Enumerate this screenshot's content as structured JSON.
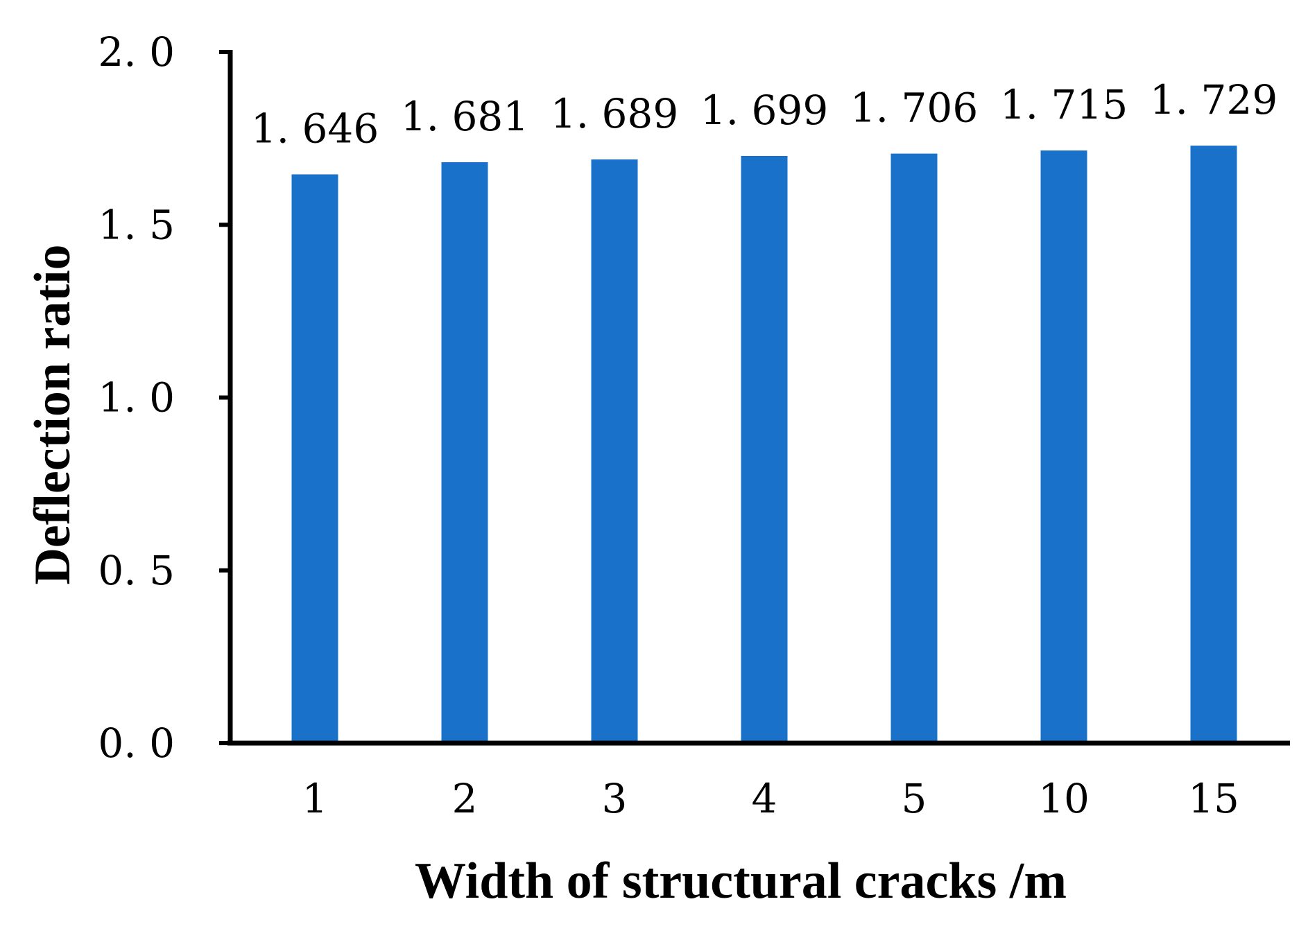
{
  "chart_data": {
    "type": "bar",
    "title": "",
    "xlabel": "Width of structural cracks /m",
    "ylabel": "Deflection ratio",
    "categories": [
      "1",
      "2",
      "3",
      "4",
      "5",
      "10",
      "15"
    ],
    "values": [
      1.646,
      1.681,
      1.689,
      1.699,
      1.706,
      1.715,
      1.729
    ],
    "data_labels": [
      "1. 646",
      "1. 681",
      "1. 689",
      "1. 699",
      "1. 706",
      "1. 715",
      "1. 729"
    ],
    "ylim": [
      0,
      2.0
    ],
    "yticks": [
      0,
      0.5,
      1.0,
      1.5,
      2.0
    ],
    "ytick_labels": [
      "0. 0",
      "0. 5",
      "1. 0",
      "1. 5",
      "2. 0"
    ],
    "grid": false,
    "legend": "none",
    "bar_color": "#1A71C9"
  }
}
